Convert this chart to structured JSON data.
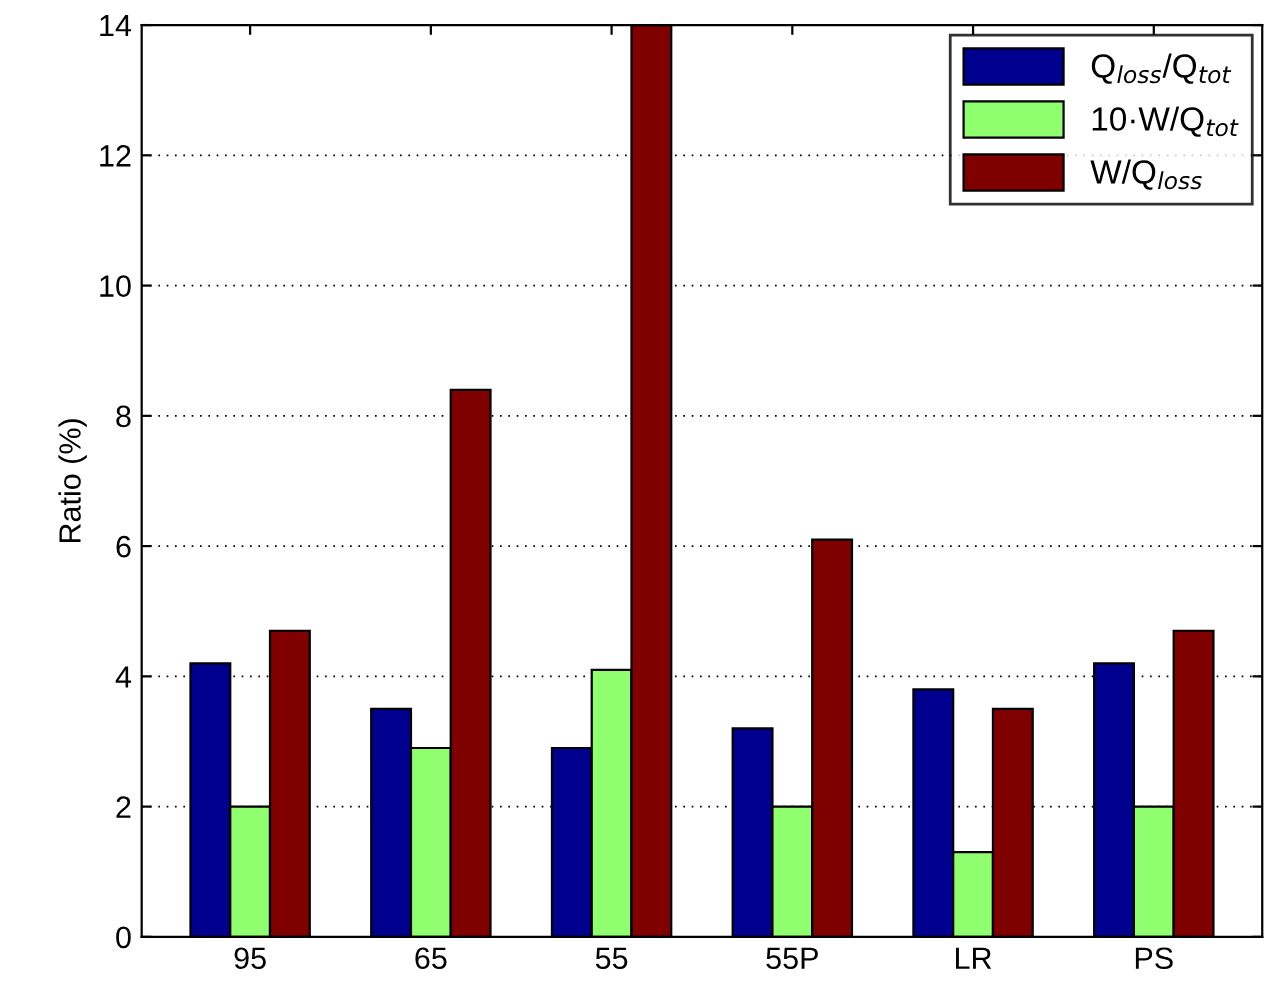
{
  "chart_data": {
    "type": "bar",
    "ylabel": "Ratio (%)",
    "categories": [
      "95",
      "65",
      "55",
      "55P",
      "LR",
      "PS"
    ],
    "series": [
      {
        "name": "Q$_{loss}$/Q$_{tot}$",
        "color": "#00008f",
        "values": [
          4.2,
          3.5,
          2.9,
          3.2,
          3.8,
          4.2
        ]
      },
      {
        "name": "10·W/Q$_{tot}$",
        "color": "#8fff70",
        "values": [
          2.0,
          2.9,
          4.1,
          2.0,
          1.3,
          2.0
        ]
      },
      {
        "name": "W/Q$_{loss}$",
        "color": "#800000",
        "values": [
          4.7,
          8.4,
          14,
          6.1,
          3.5,
          4.7
        ]
      }
    ],
    "ylim": [
      0,
      14
    ],
    "yticks": [
      0,
      2,
      4,
      6,
      8,
      10,
      12,
      14
    ],
    "grid": "y",
    "legend": "top right"
  }
}
